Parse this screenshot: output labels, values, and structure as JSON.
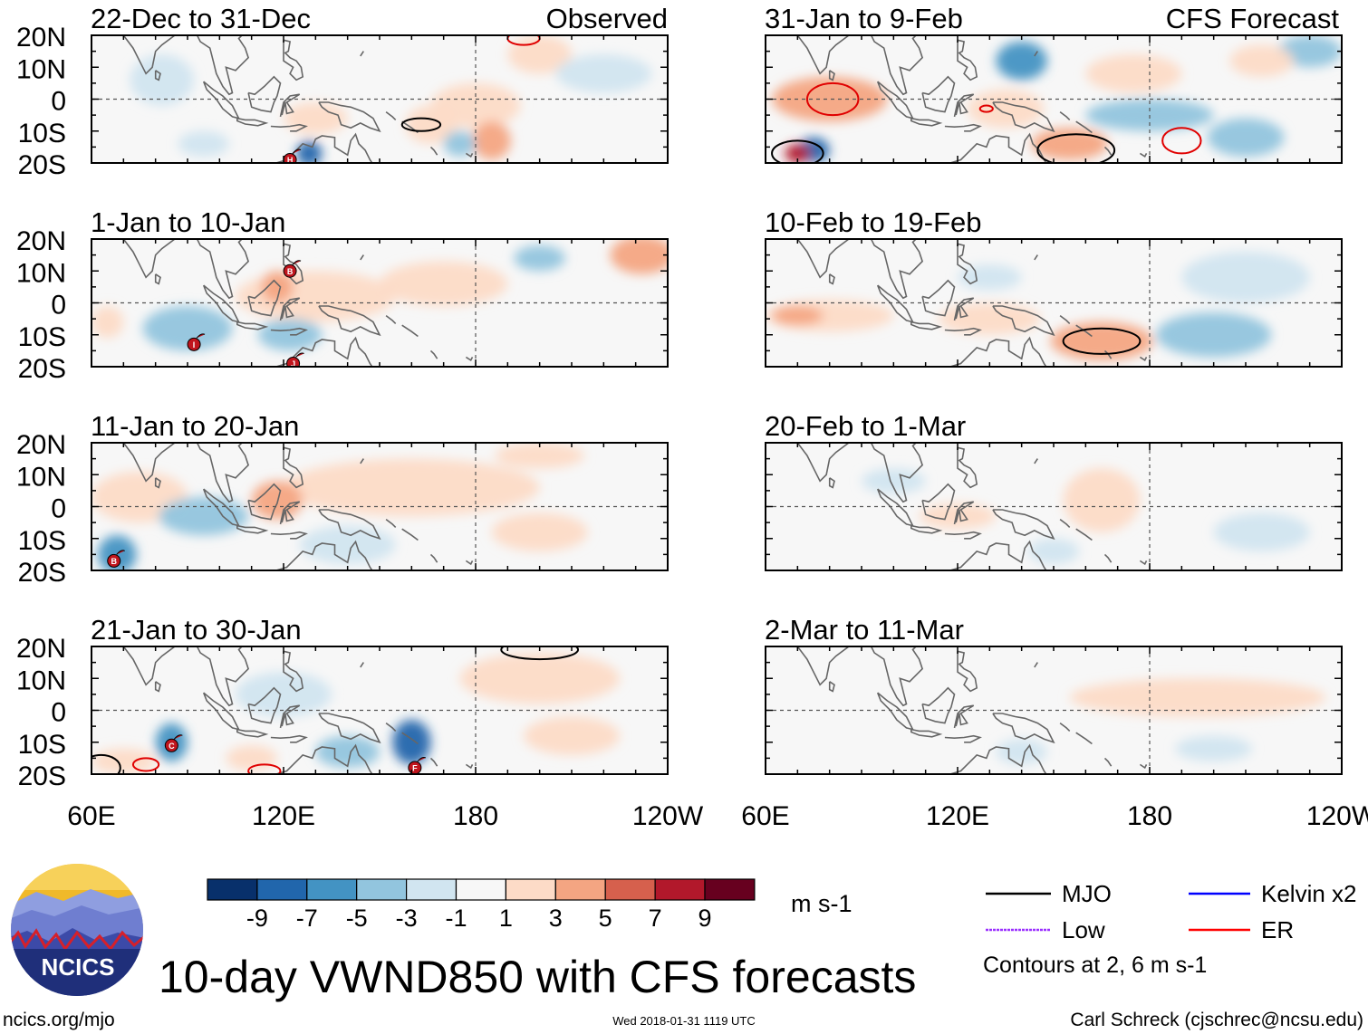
{
  "chart_data": {
    "type": "heatmap",
    "title": "10-day VWND850 with CFS forecasts",
    "units": "m s-1",
    "column_labels": [
      "Observed",
      "CFS Forecast"
    ],
    "y_ticks": [
      "20N",
      "10N",
      "0",
      "10S",
      "20S"
    ],
    "x_ticks": [
      "60E",
      "120E",
      "180",
      "120W"
    ],
    "lat_range": [
      -20,
      20
    ],
    "lon_range": [
      60,
      240
    ],
    "colorbar": {
      "colors": [
        "#08306b",
        "#2166ac",
        "#4393c3",
        "#92c5de",
        "#d1e5f0",
        "#f7f7f7",
        "#fddbc7",
        "#f4a582",
        "#d6604d",
        "#b2182b",
        "#67001f"
      ],
      "labels": [
        "-9",
        "-7",
        "-5",
        "-3",
        "-1",
        "1",
        "3",
        "5",
        "7",
        "9"
      ]
    },
    "panels": [
      {
        "title": "22-Dec to 31-Dec",
        "col": 0,
        "row": 0,
        "blobs": [
          {
            "lon": 200,
            "lat": 14,
            "rlon": 10,
            "rlat": 6,
            "v": 2
          },
          {
            "lon": 180,
            "lat": -2,
            "rlon": 14,
            "rlat": 7,
            "v": 1.5
          },
          {
            "lon": 82,
            "lat": 6,
            "rlon": 10,
            "rlat": 8,
            "v": -1.5
          },
          {
            "lon": 130,
            "lat": -6,
            "rlon": 10,
            "rlat": 5,
            "v": 2
          },
          {
            "lon": 166,
            "lat": -8,
            "rlon": 8,
            "rlat": 6,
            "v": 2
          },
          {
            "lon": 185,
            "lat": -13,
            "rlon": 6,
            "rlat": 6,
            "v": 3.5
          },
          {
            "lon": 128,
            "lat": -17,
            "rlon": 4,
            "rlat": 4,
            "v": -6
          },
          {
            "lon": 175,
            "lat": -14,
            "rlon": 5,
            "rlat": 4,
            "v": -3
          },
          {
            "lon": 220,
            "lat": 8,
            "rlon": 15,
            "rlat": 6,
            "v": -1.5
          },
          {
            "lon": 95,
            "lat": -14,
            "rlon": 8,
            "rlat": 4,
            "v": -1.5
          }
        ],
        "contours": [
          {
            "kind": "MJO",
            "lon": 163,
            "lat": -8,
            "rlon": 6,
            "rlat": 2
          },
          {
            "kind": "ER",
            "lon": 195,
            "lat": 19,
            "rlon": 5,
            "rlat": 2
          }
        ],
        "storms": [
          {
            "letter": "H",
            "lon": 122,
            "lat": -19
          }
        ]
      },
      {
        "title": "1-Jan to 10-Jan",
        "col": 0,
        "row": 1,
        "blobs": [
          {
            "lon": 130,
            "lat": 2,
            "rlon": 25,
            "rlat": 8,
            "v": 2
          },
          {
            "lon": 170,
            "lat": 6,
            "rlon": 20,
            "rlat": 7,
            "v": 1.5
          },
          {
            "lon": 232,
            "lat": 15,
            "rlon": 10,
            "rlat": 6,
            "v": 4
          },
          {
            "lon": 90,
            "lat": -8,
            "rlon": 14,
            "rlat": 7,
            "v": -2
          },
          {
            "lon": 122,
            "lat": -10,
            "rlon": 10,
            "rlat": 5,
            "v": -2
          },
          {
            "lon": 200,
            "lat": 14,
            "rlon": 8,
            "rlat": 4,
            "v": -2
          },
          {
            "lon": 118,
            "lat": 5,
            "rlon": 5,
            "rlat": 5,
            "v": 3.5
          },
          {
            "lon": 65,
            "lat": -6,
            "rlon": 5,
            "rlat": 5,
            "v": 2
          }
        ],
        "contours": [],
        "storms": [
          {
            "letter": "B",
            "lon": 122,
            "lat": 10
          },
          {
            "letter": "I",
            "lon": 92,
            "lat": -13
          },
          {
            "letter": "J",
            "lon": 123,
            "lat": -19
          }
        ]
      },
      {
        "title": "11-Jan to 20-Jan",
        "col": 0,
        "row": 2,
        "blobs": [
          {
            "lon": 160,
            "lat": 6,
            "rlon": 40,
            "rlat": 9,
            "v": 1.5
          },
          {
            "lon": 118,
            "lat": 2,
            "rlon": 8,
            "rlat": 6,
            "v": 4
          },
          {
            "lon": 75,
            "lat": 3,
            "rlon": 15,
            "rlat": 8,
            "v": 2
          },
          {
            "lon": 95,
            "lat": -3,
            "rlon": 14,
            "rlat": 6,
            "v": -2
          },
          {
            "lon": 68,
            "lat": -15,
            "rlon": 6,
            "rlat": 6,
            "v": -5
          },
          {
            "lon": 200,
            "lat": -8,
            "rlon": 15,
            "rlat": 6,
            "v": 1.5
          },
          {
            "lon": 140,
            "lat": -12,
            "rlon": 15,
            "rlat": 6,
            "v": -1.5
          },
          {
            "lon": 200,
            "lat": 16,
            "rlon": 14,
            "rlat": 4,
            "v": 1.5
          }
        ],
        "contours": [],
        "storms": [
          {
            "letter": "B",
            "lon": 67,
            "lat": -17
          }
        ]
      },
      {
        "title": "21-Jan to 30-Jan",
        "col": 0,
        "row": 3,
        "blobs": [
          {
            "lon": 160,
            "lat": -10,
            "rlon": 6,
            "rlat": 7,
            "v": -6
          },
          {
            "lon": 85,
            "lat": -10,
            "rlon": 5,
            "rlat": 6,
            "v": -5
          },
          {
            "lon": 70,
            "lat": -16,
            "rlon": 10,
            "rlat": 4,
            "v": 2
          },
          {
            "lon": 200,
            "lat": 10,
            "rlon": 25,
            "rlat": 8,
            "v": 1.5
          },
          {
            "lon": 120,
            "lat": 5,
            "rlon": 15,
            "rlat": 7,
            "v": -1.5
          },
          {
            "lon": 140,
            "lat": -13,
            "rlon": 10,
            "rlat": 5,
            "v": -2
          },
          {
            "lon": 110,
            "lat": -15,
            "rlon": 8,
            "rlat": 4,
            "v": 1.5
          },
          {
            "lon": 210,
            "lat": -8,
            "rlon": 15,
            "rlat": 6,
            "v": 1.5
          }
        ],
        "contours": [
          {
            "kind": "MJO",
            "lon": 200,
            "lat": 19,
            "rlon": 12,
            "rlat": 3
          },
          {
            "kind": "MJO",
            "lon": 63,
            "lat": -18,
            "rlon": 6,
            "rlat": 4
          },
          {
            "kind": "ER",
            "lon": 77,
            "lat": -17,
            "rlon": 4,
            "rlat": 2
          },
          {
            "kind": "ER",
            "lon": 114,
            "lat": -19,
            "rlon": 5,
            "rlat": 2
          }
        ],
        "storms": [
          {
            "letter": "C",
            "lon": 85,
            "lat": -11
          },
          {
            "letter": "F",
            "lon": 161,
            "lat": -18
          }
        ]
      },
      {
        "title": "31-Jan to 9-Feb",
        "col": 1,
        "row": 0,
        "blobs": [
          {
            "lon": 80,
            "lat": 0,
            "rlon": 18,
            "rlat": 7,
            "v": 3.5
          },
          {
            "lon": 135,
            "lat": -3,
            "rlon": 12,
            "rlat": 6,
            "v": 2
          },
          {
            "lon": 155,
            "lat": -14,
            "rlon": 12,
            "rlat": 5,
            "v": 4
          },
          {
            "lon": 140,
            "lat": 12,
            "rlon": 8,
            "rlat": 6,
            "v": -4
          },
          {
            "lon": 75,
            "lat": -16,
            "rlon": 5,
            "rlat": 4,
            "v": -7
          },
          {
            "lon": 70,
            "lat": -17,
            "rlon": 4,
            "rlat": 3,
            "v": 7
          },
          {
            "lon": 180,
            "lat": -5,
            "rlon": 20,
            "rlat": 5,
            "v": -2
          },
          {
            "lon": 210,
            "lat": -12,
            "rlon": 12,
            "rlat": 6,
            "v": -3
          },
          {
            "lon": 175,
            "lat": 8,
            "rlon": 15,
            "rlat": 6,
            "v": 2
          },
          {
            "lon": 230,
            "lat": 15,
            "rlon": 10,
            "rlat": 5,
            "v": -2
          },
          {
            "lon": 215,
            "lat": 12,
            "rlon": 10,
            "rlat": 5,
            "v": 1.5
          }
        ],
        "contours": [
          {
            "kind": "ER",
            "lon": 81,
            "lat": 0,
            "rlon": 8,
            "rlat": 5
          },
          {
            "kind": "MJO",
            "lon": 70,
            "lat": -17,
            "rlon": 8,
            "rlat": 4
          },
          {
            "kind": "MJO",
            "lon": 157,
            "lat": -16,
            "rlon": 12,
            "rlat": 5
          },
          {
            "kind": "ER",
            "lon": 129,
            "lat": -3,
            "rlon": 2,
            "rlat": 1
          },
          {
            "kind": "ER",
            "lon": 190,
            "lat": -13,
            "rlon": 6,
            "rlat": 4
          }
        ],
        "storms": []
      },
      {
        "title": "10-Feb to 19-Feb",
        "col": 1,
        "row": 1,
        "blobs": [
          {
            "lon": 80,
            "lat": -4,
            "rlon": 20,
            "rlat": 5,
            "v": 2.5
          },
          {
            "lon": 70,
            "lat": -4,
            "rlon": 8,
            "rlat": 3,
            "v": 4.5
          },
          {
            "lon": 165,
            "lat": -12,
            "rlon": 16,
            "rlat": 6,
            "v": 3
          },
          {
            "lon": 130,
            "lat": -5,
            "rlon": 16,
            "rlat": 5,
            "v": 1.5
          },
          {
            "lon": 200,
            "lat": -10,
            "rlon": 18,
            "rlat": 7,
            "v": -2.5
          },
          {
            "lon": 210,
            "lat": 8,
            "rlon": 20,
            "rlat": 8,
            "v": -1.2
          },
          {
            "lon": 130,
            "lat": 8,
            "rlon": 10,
            "rlat": 4,
            "v": -1.2
          }
        ],
        "contours": [
          {
            "kind": "MJO",
            "lon": 165,
            "lat": -12,
            "rlon": 12,
            "rlat": 4
          }
        ],
        "storms": []
      },
      {
        "title": "20-Feb to 1-Mar",
        "col": 1,
        "row": 2,
        "blobs": [
          {
            "lon": 165,
            "lat": 2,
            "rlon": 12,
            "rlat": 10,
            "v": 1.5
          },
          {
            "lon": 120,
            "lat": -3,
            "rlon": 12,
            "rlat": 4,
            "v": 1.5
          },
          {
            "lon": 100,
            "lat": 8,
            "rlon": 10,
            "rlat": 4,
            "v": -1.2
          },
          {
            "lon": 215,
            "lat": -8,
            "rlon": 15,
            "rlat": 6,
            "v": -1.2
          },
          {
            "lon": 150,
            "lat": -14,
            "rlon": 8,
            "rlat": 4,
            "v": -1.2
          }
        ],
        "contours": [],
        "storms": []
      },
      {
        "title": "2-Mar to 11-Mar",
        "col": 1,
        "row": 3,
        "blobs": [
          {
            "lon": 195,
            "lat": 4,
            "rlon": 40,
            "rlat": 6,
            "v": 1.5
          },
          {
            "lon": 140,
            "lat": -13,
            "rlon": 8,
            "rlat": 4,
            "v": -1.2
          },
          {
            "lon": 200,
            "lat": -12,
            "rlon": 12,
            "rlat": 4,
            "v": -1.2
          }
        ],
        "contours": [],
        "storms": []
      }
    ]
  },
  "legend": {
    "items": [
      {
        "label": "MJO",
        "color": "#000000"
      },
      {
        "label": "Kelvin x2",
        "color": "#0000ff"
      },
      {
        "label": "Low",
        "color": "#9b30ff"
      },
      {
        "label": "ER",
        "color": "#ff0000"
      }
    ],
    "contour_note": "Contours at 2, 6 m s-1"
  },
  "logo": {
    "text": "NCICS"
  },
  "footer": {
    "url": "ncics.org/mjo",
    "timestamp": "Wed 2018-01-31 1119 UTC",
    "credit": "Carl Schreck (cjschrec@ncsu.edu)"
  }
}
